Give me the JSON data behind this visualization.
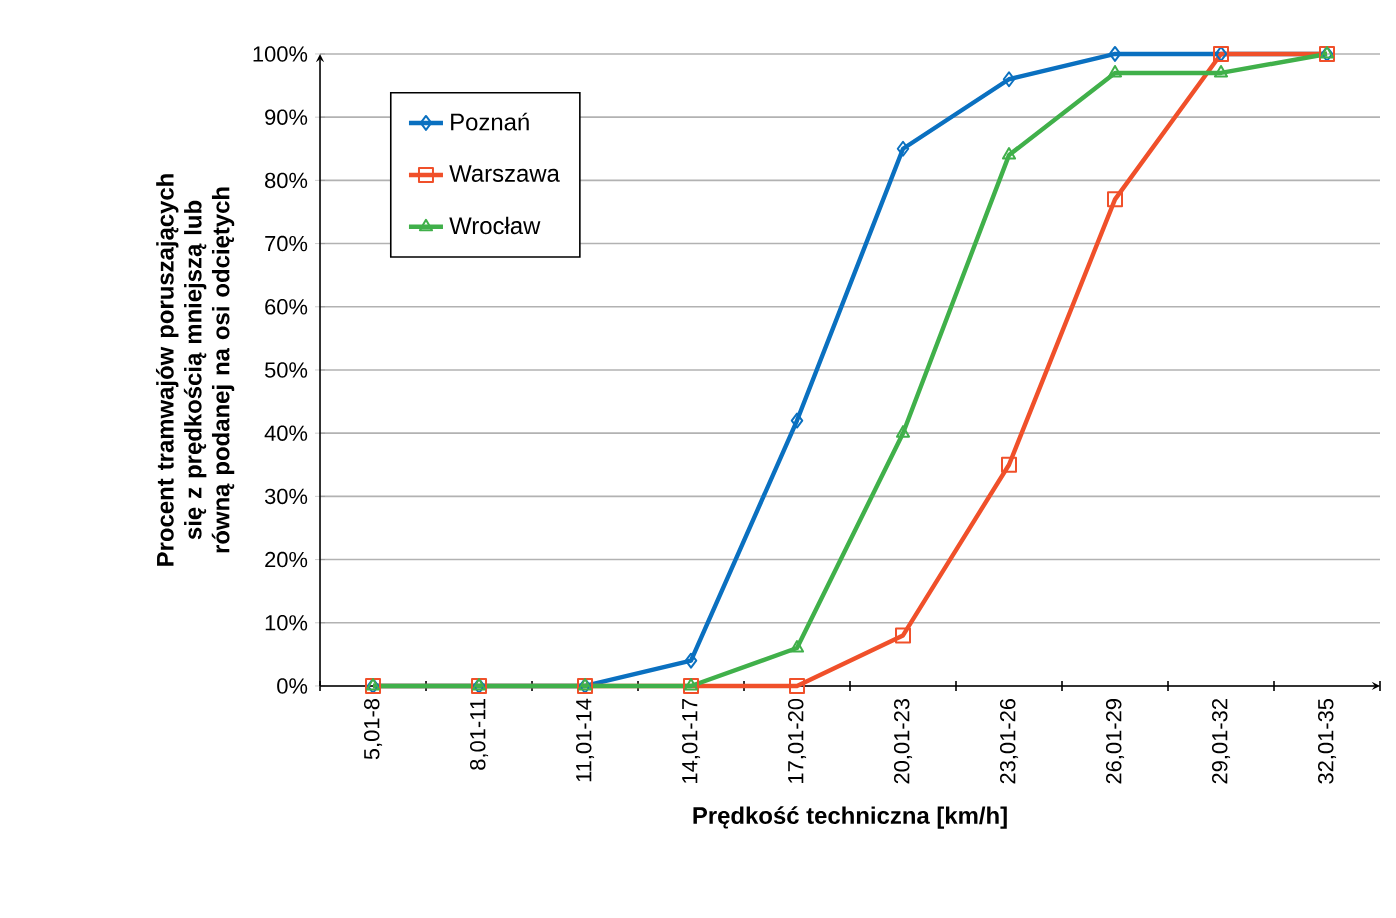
{
  "chart_data": {
    "type": "line",
    "xlabel": "Prędkość techniczna [km/h]",
    "ylabel": "Procent tramwajów poruszających się z prędkością mniejszą lub równą podanej na osi odciętych",
    "categories": [
      "5,01-8",
      "8,01-11",
      "11,01-14",
      "14,01-17",
      "17,01-20",
      "20,01-23",
      "23,01-26",
      "26,01-29",
      "29,01-32",
      "32,01-35"
    ],
    "series": [
      {
        "name": "Poznań",
        "color": "#0a70c0",
        "marker": "diamond",
        "values": [
          0,
          0,
          0,
          4,
          42,
          85,
          96,
          100,
          100,
          100
        ]
      },
      {
        "name": "Warszawa",
        "color": "#f0502a",
        "marker": "square",
        "values": [
          0,
          0,
          0,
          0,
          0,
          8,
          35,
          77,
          100,
          100
        ]
      },
      {
        "name": "Wrocław",
        "color": "#40b04a",
        "marker": "triangle",
        "values": [
          0,
          0,
          0,
          0,
          6,
          40,
          84,
          97,
          97,
          100
        ]
      }
    ],
    "ylim": [
      0,
      100
    ],
    "yticks": [
      {
        "value": 0,
        "label": "0%"
      },
      {
        "value": 10,
        "label": "10%"
      },
      {
        "value": 20,
        "label": "20%"
      },
      {
        "value": 30,
        "label": "30%"
      },
      {
        "value": 40,
        "label": "40%"
      },
      {
        "value": 50,
        "label": "50%"
      },
      {
        "value": 60,
        "label": "60%"
      },
      {
        "value": 70,
        "label": "70%"
      },
      {
        "value": 80,
        "label": "80%"
      },
      {
        "value": 90,
        "label": "90%"
      },
      {
        "value": 100,
        "label": "100%"
      }
    ],
    "grid": "y",
    "legend": "top left"
  }
}
